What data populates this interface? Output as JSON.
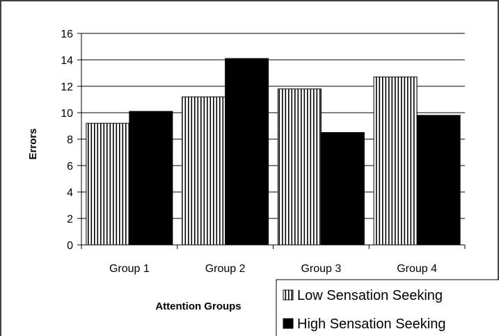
{
  "chart_data": {
    "type": "bar",
    "title": "",
    "xlabel": "Attention Groups",
    "ylabel": "Errors",
    "categories": [
      "Group 1",
      "Group 2",
      "Group 3",
      "Group 4"
    ],
    "series": [
      {
        "name": "Low Sensation Seeking",
        "values": [
          9.2,
          11.2,
          11.8,
          12.7
        ],
        "pattern": "vertical-stripes",
        "color": "#ffffff"
      },
      {
        "name": "High Sensation Seeking",
        "values": [
          10.1,
          14.1,
          8.5,
          9.8
        ],
        "pattern": "solid",
        "color": "#000000"
      }
    ],
    "ylim": [
      0,
      16
    ],
    "yticks": [
      "0",
      "2",
      "4",
      "6",
      "8",
      "10",
      "12",
      "14",
      "16"
    ],
    "grid": true,
    "legend_position": "bottom-right"
  }
}
